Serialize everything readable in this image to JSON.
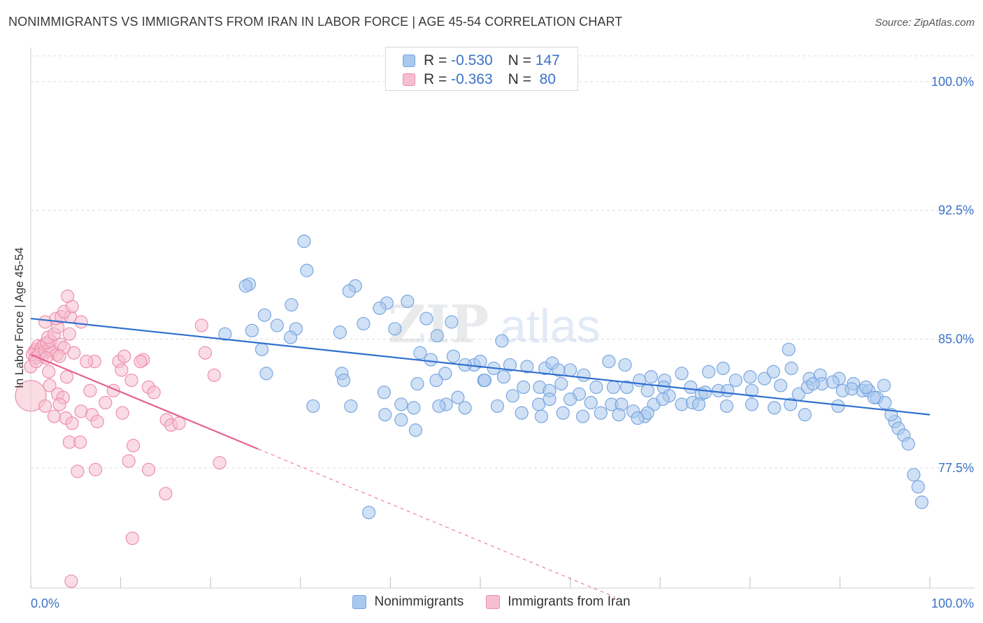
{
  "title": "NONIMMIGRANTS VS IMMIGRANTS FROM IRAN IN LABOR FORCE | AGE 45-54 CORRELATION CHART",
  "source": "Source: ZipAtlas.com",
  "watermark": {
    "zip": "ZIP",
    "atlas": "atlas"
  },
  "colors": {
    "blue_fill": "#a9c8ee",
    "blue_stroke": "#7aa6df",
    "blue_line": "#2f6fd0",
    "pink_fill": "#f6bfd0",
    "pink_stroke": "#ee8fae",
    "pink_line": "#e5638f",
    "axis_text": "#3b72c8",
    "grid": "#dcdcdc"
  },
  "legend_top": {
    "rows": [
      {
        "r_label": "R = ",
        "r_value": "-0.530",
        "n_label": "N = ",
        "n_value": "147",
        "series": "blue"
      },
      {
        "r_label": "R = ",
        "r_value": "-0.363",
        "n_label": "N = ",
        "n_value": " 80",
        "series": "pink"
      }
    ]
  },
  "legend_bottom": {
    "items": [
      "Nonimmigrants",
      "Immigrants from Iran"
    ]
  },
  "chart_data": {
    "type": "scatter",
    "title": "NONIMMIGRANTS VS IMMIGRANTS FROM IRAN IN LABOR FORCE | AGE 45-54 CORRELATION CHART",
    "xlabel": "",
    "ylabel": "In Labor Force | Age 45-54",
    "xlim": [
      0,
      100
    ],
    "ylim": [
      70.5,
      101.5
    ],
    "x_tick_labels": [
      "0.0%",
      "100.0%"
    ],
    "y_ticks": [
      100.0,
      92.5,
      85.0,
      77.5
    ],
    "y_tick_labels": [
      "100.0%",
      "92.5%",
      "85.0%",
      "77.5%"
    ],
    "grid": true,
    "series": [
      {
        "name": "Nonimmigrants",
        "color": "blue",
        "r": -0.53,
        "n": 147,
        "trend": {
          "x0": 0,
          "y0": 86.2,
          "x1": 100,
          "y1": 80.6,
          "dashed_to": 100
        },
        "points": [
          [
            30.4,
            90.7
          ],
          [
            30.7,
            89.0
          ],
          [
            24.3,
            88.2
          ],
          [
            23.9,
            88.1
          ],
          [
            36.1,
            88.1
          ],
          [
            35.4,
            87.8
          ],
          [
            29.0,
            87.0
          ],
          [
            39.6,
            87.1
          ],
          [
            41.9,
            87.2
          ],
          [
            38.8,
            86.8
          ],
          [
            26.0,
            86.4
          ],
          [
            24.6,
            85.5
          ],
          [
            27.4,
            85.8
          ],
          [
            29.5,
            85.6
          ],
          [
            21.6,
            85.3
          ],
          [
            34.4,
            85.4
          ],
          [
            37.0,
            85.9
          ],
          [
            40.5,
            85.6
          ],
          [
            44.0,
            86.2
          ],
          [
            46.8,
            86.0
          ],
          [
            45.2,
            85.2
          ],
          [
            28.9,
            85.1
          ],
          [
            52.4,
            84.9
          ],
          [
            25.7,
            84.4
          ],
          [
            43.3,
            84.2
          ],
          [
            47.0,
            84.0
          ],
          [
            49.3,
            83.5
          ],
          [
            34.6,
            83.0
          ],
          [
            26.2,
            83.0
          ],
          [
            46.1,
            83.0
          ],
          [
            48.3,
            83.5
          ],
          [
            50.0,
            83.7
          ],
          [
            51.5,
            83.3
          ],
          [
            50.4,
            82.6
          ],
          [
            53.3,
            83.5
          ],
          [
            55.2,
            83.4
          ],
          [
            57.2,
            83.3
          ],
          [
            58.0,
            83.6
          ],
          [
            60.0,
            83.2
          ],
          [
            61.5,
            82.9
          ],
          [
            58.7,
            83.2
          ],
          [
            64.3,
            83.7
          ],
          [
            66.1,
            83.5
          ],
          [
            67.7,
            82.6
          ],
          [
            69.0,
            82.8
          ],
          [
            70.5,
            82.6
          ],
          [
            72.4,
            83.0
          ],
          [
            75.4,
            83.1
          ],
          [
            77.0,
            83.3
          ],
          [
            78.4,
            82.6
          ],
          [
            80.0,
            82.8
          ],
          [
            81.6,
            82.7
          ],
          [
            82.6,
            83.1
          ],
          [
            84.6,
            83.3
          ],
          [
            86.6,
            82.7
          ],
          [
            87.8,
            82.9
          ],
          [
            89.9,
            82.7
          ],
          [
            91.5,
            82.4
          ],
          [
            92.5,
            82.0
          ],
          [
            94.9,
            82.3
          ],
          [
            43.0,
            82.4
          ],
          [
            44.5,
            83.8
          ],
          [
            45.1,
            82.6
          ],
          [
            50.5,
            82.6
          ],
          [
            52.6,
            82.8
          ],
          [
            54.8,
            82.2
          ],
          [
            56.6,
            82.2
          ],
          [
            57.7,
            82.0
          ],
          [
            59.0,
            82.4
          ],
          [
            61.0,
            81.8
          ],
          [
            62.9,
            82.2
          ],
          [
            64.8,
            82.2
          ],
          [
            66.3,
            82.2
          ],
          [
            68.6,
            82.0
          ],
          [
            70.4,
            82.2
          ],
          [
            71.0,
            81.7
          ],
          [
            73.4,
            82.2
          ],
          [
            74.6,
            81.8
          ],
          [
            75.0,
            81.9
          ],
          [
            76.5,
            82.0
          ],
          [
            77.5,
            82.0
          ],
          [
            80.2,
            82.0
          ],
          [
            83.4,
            82.3
          ],
          [
            85.4,
            81.8
          ],
          [
            86.4,
            82.2
          ],
          [
            88.0,
            82.4
          ],
          [
            90.3,
            82.0
          ],
          [
            91.3,
            82.1
          ],
          [
            93.2,
            82.0
          ],
          [
            94.1,
            81.6
          ],
          [
            95.0,
            81.3
          ],
          [
            34.8,
            82.6
          ],
          [
            39.3,
            81.9
          ],
          [
            46.2,
            81.2
          ],
          [
            47.5,
            81.6
          ],
          [
            53.6,
            81.7
          ],
          [
            56.5,
            81.2
          ],
          [
            57.7,
            81.5
          ],
          [
            60.0,
            81.5
          ],
          [
            62.3,
            81.3
          ],
          [
            64.6,
            81.2
          ],
          [
            65.7,
            81.2
          ],
          [
            67.0,
            80.8
          ],
          [
            68.3,
            80.5
          ],
          [
            69.3,
            81.2
          ],
          [
            70.3,
            81.5
          ],
          [
            72.4,
            81.2
          ],
          [
            73.6,
            81.3
          ],
          [
            77.4,
            81.1
          ],
          [
            80.2,
            81.2
          ],
          [
            82.7,
            81.0
          ],
          [
            84.5,
            81.2
          ],
          [
            86.1,
            80.6
          ],
          [
            89.8,
            81.1
          ],
          [
            31.4,
            81.1
          ],
          [
            35.6,
            81.1
          ],
          [
            39.4,
            80.6
          ],
          [
            41.2,
            81.2
          ],
          [
            42.6,
            81.0
          ],
          [
            45.4,
            81.1
          ],
          [
            48.3,
            81.0
          ],
          [
            51.9,
            81.1
          ],
          [
            54.6,
            80.7
          ],
          [
            56.8,
            80.5
          ],
          [
            59.2,
            80.7
          ],
          [
            61.4,
            80.5
          ],
          [
            63.4,
            80.7
          ],
          [
            65.4,
            80.6
          ],
          [
            67.5,
            80.4
          ],
          [
            68.6,
            80.7
          ],
          [
            74.3,
            81.2
          ],
          [
            41.2,
            80.3
          ],
          [
            42.8,
            79.7
          ],
          [
            84.3,
            84.4
          ],
          [
            96.1,
            80.2
          ],
          [
            96.5,
            79.8
          ],
          [
            97.1,
            79.4
          ],
          [
            97.6,
            78.9
          ],
          [
            98.2,
            77.1
          ],
          [
            98.7,
            76.4
          ],
          [
            99.1,
            75.5
          ],
          [
            37.6,
            74.9
          ],
          [
            87.0,
            82.4
          ],
          [
            89.2,
            82.5
          ],
          [
            93.8,
            81.6
          ],
          [
            95.7,
            80.6
          ],
          [
            92.9,
            82.2
          ]
        ]
      },
      {
        "name": "Immigrants from Iran",
        "color": "pink",
        "r": -0.363,
        "n": 80,
        "trend": {
          "x0": 0,
          "y0": 84.1,
          "x1": 25.3,
          "y1": 78.6,
          "dashed_to": 65
        },
        "points": [
          [
            0.4,
            84.3
          ],
          [
            0.6,
            84.4
          ],
          [
            0.8,
            84.6
          ],
          [
            1.0,
            84.3
          ],
          [
            1.2,
            84.5
          ],
          [
            1.3,
            84.0
          ],
          [
            1.5,
            84.7
          ],
          [
            0.2,
            84.1
          ],
          [
            0.5,
            83.9
          ],
          [
            0.9,
            84.1
          ],
          [
            1.6,
            84.3
          ],
          [
            2.1,
            84.4
          ],
          [
            2.4,
            84.3
          ],
          [
            2.9,
            84.1
          ],
          [
            1.8,
            84.8
          ],
          [
            2.2,
            84.9
          ],
          [
            3.3,
            84.7
          ],
          [
            3.7,
            84.5
          ],
          [
            1.9,
            85.1
          ],
          [
            2.6,
            85.3
          ],
          [
            3.0,
            85.7
          ],
          [
            4.3,
            85.3
          ],
          [
            1.6,
            86.0
          ],
          [
            2.8,
            86.2
          ],
          [
            3.4,
            86.3
          ],
          [
            4.4,
            86.3
          ],
          [
            5.6,
            86.0
          ],
          [
            3.7,
            86.6
          ],
          [
            4.6,
            86.9
          ],
          [
            4.1,
            87.5
          ],
          [
            0.0,
            83.4
          ],
          [
            0.6,
            83.7
          ],
          [
            1.7,
            83.9
          ],
          [
            3.2,
            84.0
          ],
          [
            4.8,
            84.2
          ],
          [
            7.1,
            83.7
          ],
          [
            9.8,
            83.7
          ],
          [
            10.4,
            84.0
          ],
          [
            12.5,
            83.8
          ],
          [
            12.2,
            83.7
          ],
          [
            19.4,
            84.2
          ],
          [
            19.0,
            85.8
          ],
          [
            2.0,
            83.1
          ],
          [
            4.0,
            82.8
          ],
          [
            6.2,
            83.7
          ],
          [
            10.1,
            83.2
          ],
          [
            11.2,
            82.6
          ],
          [
            20.4,
            82.9
          ],
          [
            2.1,
            82.3
          ],
          [
            6.6,
            82.0
          ],
          [
            9.2,
            82.0
          ],
          [
            13.1,
            82.2
          ],
          [
            3.0,
            81.8
          ],
          [
            3.6,
            81.6
          ],
          [
            8.3,
            81.3
          ],
          [
            13.7,
            81.9
          ],
          [
            0.0,
            81.7
          ],
          [
            1.6,
            81.1
          ],
          [
            3.2,
            81.2
          ],
          [
            5.6,
            80.8
          ],
          [
            6.8,
            80.6
          ],
          [
            7.4,
            80.2
          ],
          [
            10.2,
            80.7
          ],
          [
            2.6,
            80.5
          ],
          [
            3.9,
            80.4
          ],
          [
            4.6,
            80.1
          ],
          [
            15.1,
            80.3
          ],
          [
            15.6,
            80.0
          ],
          [
            16.5,
            80.1
          ],
          [
            4.3,
            79.0
          ],
          [
            5.5,
            79.0
          ],
          [
            11.4,
            78.8
          ],
          [
            10.9,
            77.9
          ],
          [
            7.2,
            77.4
          ],
          [
            13.1,
            77.4
          ],
          [
            5.2,
            77.3
          ],
          [
            21.0,
            77.8
          ],
          [
            15.0,
            76.0
          ],
          [
            11.3,
            73.4
          ],
          [
            4.5,
            70.9
          ]
        ]
      }
    ]
  }
}
